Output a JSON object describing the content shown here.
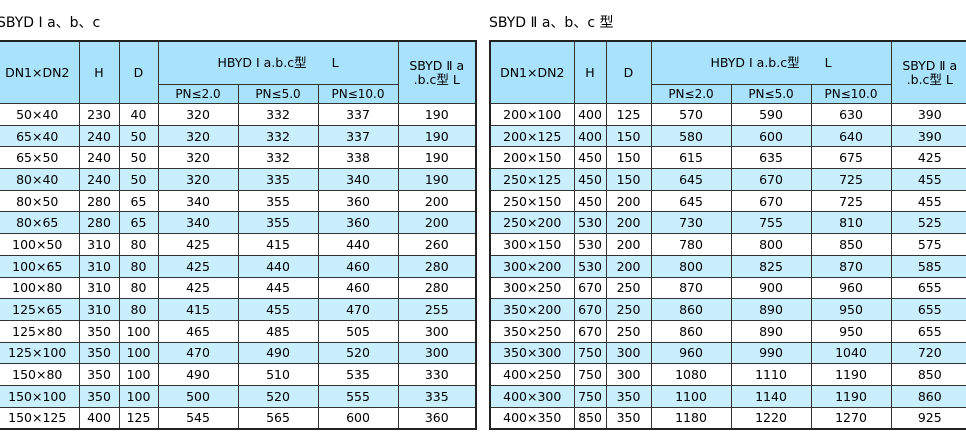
{
  "left": {
    "title": "SBYD Ⅰ a、b、c",
    "headers": {
      "dn": "DN1×DN2",
      "h": "H",
      "d": "D",
      "group": "HBYD Ⅰ a.b.c型　　L",
      "sub": [
        "PN≤2.0",
        "PN≤5.0",
        "PN≤10.0"
      ],
      "last": "SBYD Ⅱ a .b.c型 L"
    },
    "rows": [
      [
        "50×40",
        230,
        40,
        320,
        332,
        337,
        190
      ],
      [
        "65×40",
        240,
        50,
        320,
        332,
        337,
        190
      ],
      [
        "65×50",
        240,
        50,
        320,
        332,
        338,
        190
      ],
      [
        "80×40",
        240,
        50,
        320,
        335,
        340,
        190
      ],
      [
        "80×50",
        280,
        65,
        340,
        355,
        360,
        200
      ],
      [
        "80×65",
        280,
        65,
        340,
        355,
        360,
        200
      ],
      [
        "100×50",
        310,
        80,
        425,
        415,
        440,
        260
      ],
      [
        "100×65",
        310,
        80,
        425,
        440,
        460,
        280
      ],
      [
        "100×80",
        310,
        80,
        425,
        445,
        460,
        280
      ],
      [
        "125×65",
        310,
        80,
        415,
        455,
        470,
        255
      ],
      [
        "125×80",
        350,
        100,
        465,
        485,
        505,
        300
      ],
      [
        "125×100",
        350,
        100,
        470,
        490,
        520,
        300
      ],
      [
        "150×80",
        350,
        100,
        490,
        510,
        535,
        330
      ],
      [
        "150×100",
        350,
        100,
        500,
        520,
        555,
        335
      ],
      [
        "150×125",
        400,
        125,
        545,
        565,
        600,
        360
      ]
    ]
  },
  "right": {
    "title": "SBYD Ⅱ a、b、c 型",
    "headers": {
      "dn": "DN1×DN2",
      "h": "H",
      "d": "D",
      "group": "HBYD Ⅰ a.b.c型　　L",
      "sub": [
        "PN≤2.0",
        "PN≤5.0",
        "PN≤10.0"
      ],
      "last": "SBYD Ⅱ a .b.c型 L"
    },
    "rows": [
      [
        "200×100",
        400,
        125,
        570,
        590,
        630,
        390
      ],
      [
        "200×125",
        400,
        150,
        580,
        600,
        640,
        390
      ],
      [
        "200×150",
        450,
        150,
        615,
        635,
        675,
        425
      ],
      [
        "250×125",
        450,
        150,
        645,
        670,
        725,
        455
      ],
      [
        "250×150",
        450,
        200,
        645,
        670,
        725,
        455
      ],
      [
        "250×200",
        530,
        200,
        730,
        755,
        810,
        525
      ],
      [
        "300×150",
        530,
        200,
        780,
        800,
        850,
        575
      ],
      [
        "300×200",
        530,
        200,
        800,
        825,
        870,
        585
      ],
      [
        "300×250",
        670,
        250,
        870,
        900,
        960,
        655
      ],
      [
        "350×200",
        670,
        250,
        860,
        890,
        950,
        655
      ],
      [
        "350×250",
        670,
        250,
        860,
        890,
        950,
        655
      ],
      [
        "350×300",
        750,
        300,
        960,
        990,
        1040,
        720
      ],
      [
        "400×250",
        750,
        300,
        1080,
        1110,
        1190,
        850
      ],
      [
        "400×300",
        750,
        350,
        1100,
        1140,
        1190,
        860
      ],
      [
        "400×350",
        850,
        350,
        1180,
        1220,
        1270,
        925
      ]
    ]
  }
}
